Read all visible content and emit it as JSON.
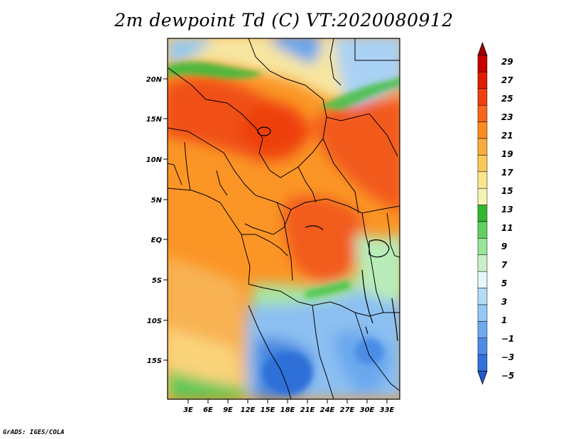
{
  "title": "2m dewpoint Td (C) VT:2020080912",
  "credit": "GrADS: IGES/COLA",
  "map": {
    "lat_labels": [
      "20N",
      "15N",
      "10N",
      "5N",
      "EQ",
      "5S",
      "10S",
      "15S"
    ],
    "lon_labels": [
      "3E",
      "6E",
      "9E",
      "12E",
      "15E",
      "18E",
      "21E",
      "24E",
      "27E",
      "30E",
      "33E"
    ]
  },
  "colorbar": {
    "labels": [
      "29",
      "27",
      "25",
      "23",
      "21",
      "19",
      "17",
      "15",
      "13",
      "11",
      "9",
      "7",
      "5",
      "3",
      "1",
      "−1",
      "−3",
      "−5"
    ],
    "colors": [
      "#a00000",
      "#c80000",
      "#e01e00",
      "#f04010",
      "#f8661c",
      "#fb8c20",
      "#f8aa3c",
      "#fac85a",
      "#fbe68c",
      "#f6f4b4",
      "#30b830",
      "#60d060",
      "#98e498",
      "#c8f0c8",
      "#e6f8f8",
      "#b4dcf8",
      "#96c8f4",
      "#6eaaf0",
      "#4c8ce6",
      "#3072dc",
      "#1e5ad2"
    ]
  }
}
